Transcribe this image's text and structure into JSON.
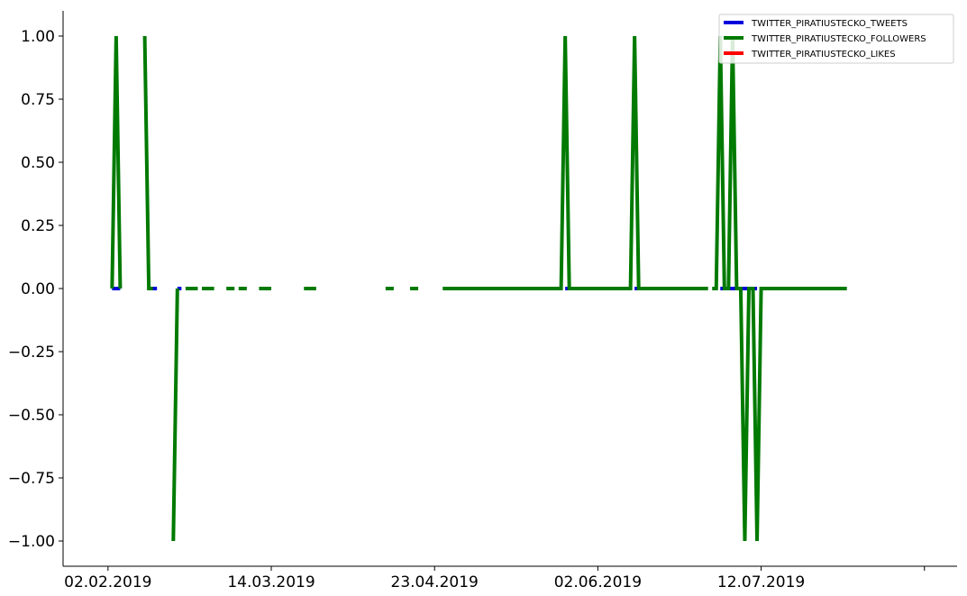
{
  "chart_data": {
    "type": "line",
    "title": "",
    "xlabel": "",
    "ylabel": "",
    "ylim": [
      -1.1,
      1.1
    ],
    "y_ticks": [
      "1.00",
      "0.75",
      "0.50",
      "0.25",
      "0.00",
      "−0.25",
      "−0.50",
      "−0.75",
      "−1.00"
    ],
    "y_tick_values": [
      1.0,
      0.75,
      0.5,
      0.25,
      0.0,
      -0.25,
      -0.5,
      -0.75,
      -1.0
    ],
    "x_tick_labels": [
      "02.02.2019",
      "14.03.2019",
      "23.04.2019",
      "02.06.2019",
      "12.07.2019",
      ""
    ],
    "x_tick_dates": [
      "2019-02-02",
      "2019-03-14",
      "2019-04-23",
      "2019-06-02",
      "2019-07-12",
      "2019-08-21"
    ],
    "xlim": [
      "2019-01-22",
      "2019-08-29"
    ],
    "grid": false,
    "legend_position": "top-right",
    "series": [
      {
        "name": "TWITTER_PIRATIUSTECKO_TWEETS",
        "color": "#0000dd",
        "points": [
          [
            "2019-02-03",
            0
          ],
          [
            "2019-02-04",
            0
          ],
          [
            "2019-02-05",
            0
          ],
          [
            "2019-02-12",
            0
          ],
          [
            "2019-02-13",
            0
          ],
          [
            "2019-02-14",
            0
          ],
          [
            "2019-02-19",
            0
          ],
          [
            "2019-02-20",
            0
          ],
          [
            "2019-05-25",
            0
          ],
          [
            "2019-05-26",
            0
          ],
          [
            "2019-05-27",
            0
          ],
          [
            "2019-06-11",
            0
          ],
          [
            "2019-06-12",
            0
          ],
          [
            "2019-06-13",
            0
          ],
          [
            "2019-07-02",
            0
          ],
          [
            "2019-07-03",
            0
          ],
          [
            "2019-07-04",
            0
          ],
          [
            "2019-07-05",
            0
          ],
          [
            "2019-07-06",
            0
          ],
          [
            "2019-07-07",
            0
          ],
          [
            "2019-07-08",
            0
          ],
          [
            "2019-07-09",
            0
          ],
          [
            "2019-07-10",
            0
          ],
          [
            "2019-07-11",
            0
          ]
        ]
      },
      {
        "name": "TWITTER_PIRATIUSTECKO_FOLLOWERS",
        "color": "#007a00",
        "segments": [
          [
            [
              "2019-02-03",
              0
            ],
            [
              "2019-02-04",
              1
            ],
            [
              "2019-02-05",
              0
            ]
          ],
          [
            [
              "2019-02-11",
              1
            ],
            [
              "2019-02-12",
              0
            ],
            [
              "2019-02-13",
              0
            ]
          ],
          [
            [
              "2019-02-18",
              -1
            ],
            [
              "2019-02-19",
              0
            ]
          ],
          [
            [
              "2019-02-21",
              0
            ],
            [
              "2019-02-24",
              0
            ]
          ],
          [
            [
              "2019-02-25",
              0
            ],
            [
              "2019-02-28",
              0
            ]
          ],
          [
            [
              "2019-03-03",
              0
            ],
            [
              "2019-03-05",
              0
            ]
          ],
          [
            [
              "2019-03-06",
              0
            ],
            [
              "2019-03-08",
              0
            ]
          ],
          [
            [
              "2019-03-11",
              0
            ],
            [
              "2019-03-12",
              0
            ]
          ],
          [
            [
              "2019-03-12",
              0
            ],
            [
              "2019-03-14",
              0
            ]
          ],
          [
            [
              "2019-03-22",
              0
            ],
            [
              "2019-03-25",
              0
            ]
          ],
          [
            [
              "2019-04-11",
              0
            ],
            [
              "2019-04-13",
              0
            ]
          ],
          [
            [
              "2019-04-17",
              0
            ],
            [
              "2019-04-19",
              0
            ]
          ],
          [
            [
              "2019-04-25",
              0
            ],
            [
              "2019-05-24",
              0
            ],
            [
              "2019-05-25",
              1
            ],
            [
              "2019-05-26",
              0
            ],
            [
              "2019-06-10",
              0
            ],
            [
              "2019-06-11",
              1
            ],
            [
              "2019-06-12",
              0
            ],
            [
              "2019-06-29",
              0
            ]
          ],
          [
            [
              "2019-06-30",
              0
            ],
            [
              "2019-07-01",
              0
            ],
            [
              "2019-07-02",
              1
            ],
            [
              "2019-07-03",
              0
            ],
            [
              "2019-07-04",
              0
            ],
            [
              "2019-07-05",
              1
            ],
            [
              "2019-07-06",
              0
            ],
            [
              "2019-07-07",
              0
            ],
            [
              "2019-07-08",
              -1
            ],
            [
              "2019-07-09",
              0
            ],
            [
              "2019-07-10",
              0
            ],
            [
              "2019-07-11",
              -1
            ],
            [
              "2019-07-12",
              0
            ],
            [
              "2019-08-02",
              0
            ]
          ]
        ]
      },
      {
        "name": "TWITTER_PIRATIUSTECKO_LIKES",
        "color": "#ff0000",
        "points": []
      }
    ]
  }
}
